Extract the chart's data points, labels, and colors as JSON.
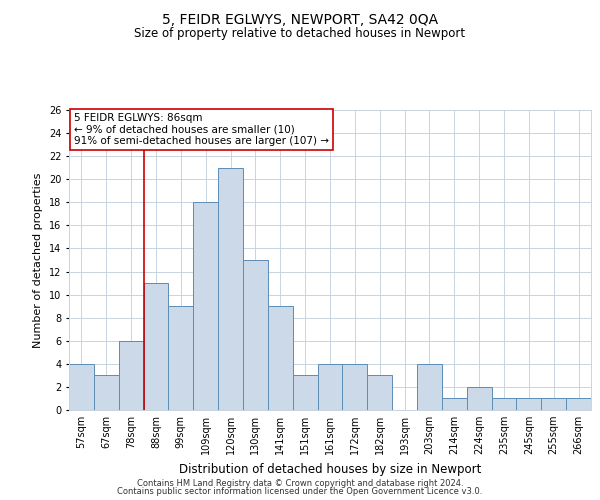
{
  "title": "5, FEIDR EGLWYS, NEWPORT, SA42 0QA",
  "subtitle": "Size of property relative to detached houses in Newport",
  "xlabel": "Distribution of detached houses by size in Newport",
  "ylabel": "Number of detached properties",
  "categories": [
    "57sqm",
    "67sqm",
    "78sqm",
    "88sqm",
    "99sqm",
    "109sqm",
    "120sqm",
    "130sqm",
    "141sqm",
    "151sqm",
    "161sqm",
    "172sqm",
    "182sqm",
    "193sqm",
    "203sqm",
    "214sqm",
    "224sqm",
    "235sqm",
    "245sqm",
    "255sqm",
    "266sqm"
  ],
  "values": [
    4,
    3,
    6,
    11,
    9,
    18,
    21,
    13,
    9,
    3,
    4,
    4,
    3,
    0,
    4,
    1,
    2,
    1,
    1,
    1,
    1
  ],
  "bar_color": "#ccd9e8",
  "bar_edge_color": "#5b8db8",
  "vline_color": "#cc0000",
  "vline_x_idx": 2.5,
  "annotation_text": "5 FEIDR EGLWYS: 86sqm\n← 9% of detached houses are smaller (10)\n91% of semi-detached houses are larger (107) →",
  "annotation_box_facecolor": "white",
  "annotation_box_edgecolor": "#cc0000",
  "ylim": [
    0,
    26
  ],
  "yticks": [
    0,
    2,
    4,
    6,
    8,
    10,
    12,
    14,
    16,
    18,
    20,
    22,
    24,
    26
  ],
  "background_color": "#ffffff",
  "plot_background": "#ffffff",
  "grid_color": "#c8d4e0",
  "footer_line1": "Contains HM Land Registry data © Crown copyright and database right 2024.",
  "footer_line2": "Contains public sector information licensed under the Open Government Licence v3.0.",
  "title_fontsize": 10,
  "subtitle_fontsize": 8.5,
  "xlabel_fontsize": 8.5,
  "ylabel_fontsize": 8,
  "tick_fontsize": 7,
  "footer_fontsize": 6,
  "annotation_fontsize": 7.5
}
